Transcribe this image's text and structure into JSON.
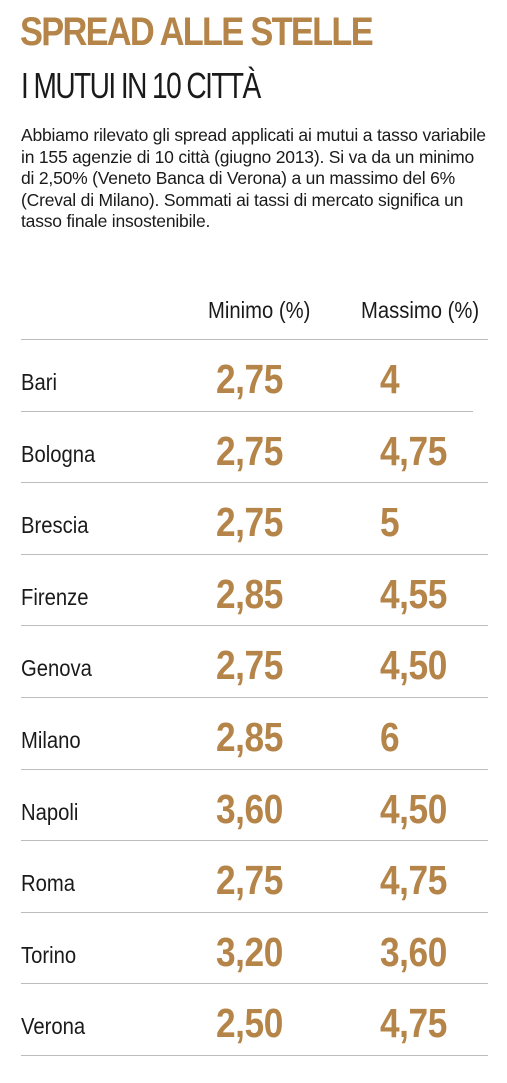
{
  "title": "SPREAD ALLE STELLE",
  "subtitle": "I MUTUI IN 10 CITTÀ",
  "intro": "Abbiamo rilevato gli spread applicati ai mutui a tasso variabile in 155 agenzie di 10 città (giugno 2013). Si va da un minimo di 2,50% (Veneto Banca di Verona) a un massimo del 6% (Creval di Milano). Sommati ai tassi di mercato significa un tasso finale insostenibile.",
  "colors": {
    "accent": "#b58448",
    "text": "#1a1a1a",
    "rule": "#bdbdbd"
  },
  "chart_data": {
    "type": "table",
    "columns": [
      "",
      "Minimo (%)",
      "Massimo (%)"
    ],
    "rows": [
      {
        "city": "Bari",
        "min": "2,75",
        "max": "4"
      },
      {
        "city": "Bologna",
        "min": "2,75",
        "max": "4,75"
      },
      {
        "city": "Brescia",
        "min": "2,75",
        "max": "5"
      },
      {
        "city": "Firenze",
        "min": "2,85",
        "max": "4,55"
      },
      {
        "city": "Genova",
        "min": "2,75",
        "max": "4,50"
      },
      {
        "city": "Milano",
        "min": "2,85",
        "max": "6"
      },
      {
        "city": "Napoli",
        "min": "3,60",
        "max": "4,50"
      },
      {
        "city": "Roma",
        "min": "2,75",
        "max": "4,75"
      },
      {
        "city": "Torino",
        "min": "3,20",
        "max": "3,60"
      },
      {
        "city": "Verona",
        "min": "2,50",
        "max": "4,75"
      }
    ]
  }
}
